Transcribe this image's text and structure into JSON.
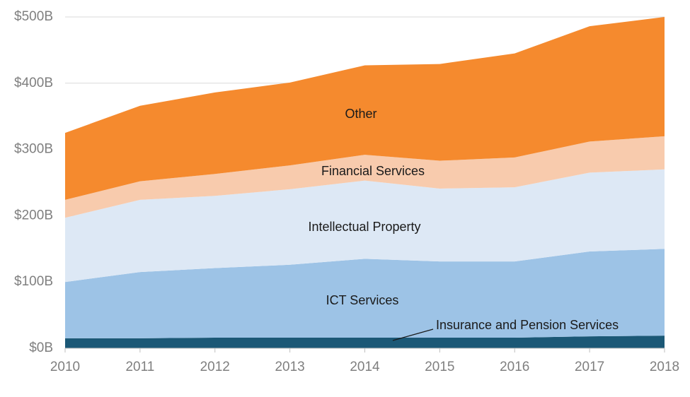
{
  "chart_data": {
    "type": "stacked_area",
    "x": [
      2010,
      2011,
      2012,
      2013,
      2014,
      2015,
      2016,
      2017,
      2018
    ],
    "xlim": [
      2010,
      2018
    ],
    "xticks": [
      2010,
      2011,
      2012,
      2013,
      2014,
      2015,
      2016,
      2017,
      2018
    ],
    "ylim": [
      0,
      500
    ],
    "yticks": [
      {
        "value": 0,
        "label": "$0B"
      },
      {
        "value": 100,
        "label": "$100B"
      },
      {
        "value": 200,
        "label": "$200B"
      },
      {
        "value": 300,
        "label": "$300B"
      },
      {
        "value": 400,
        "label": "$400B"
      },
      {
        "value": 500,
        "label": "$500B"
      }
    ],
    "grid": true,
    "series": [
      {
        "name": "Insurance and Pension Services",
        "color": "#1b5876",
        "values": [
          15,
          15,
          16,
          16,
          16,
          16,
          16,
          18,
          19
        ]
      },
      {
        "name": "ICT Services",
        "color": "#9dc3e6",
        "values": [
          85,
          100,
          105,
          110,
          119,
          115,
          115,
          128,
          131
        ]
      },
      {
        "name": "Intellectual Property",
        "color": "#dde8f5",
        "values": [
          97,
          109,
          109,
          114,
          118,
          110,
          112,
          119,
          120
        ]
      },
      {
        "name": "Financial Services",
        "color": "#f8cbad",
        "values": [
          27,
          28,
          33,
          36,
          39,
          42,
          45,
          47,
          50
        ]
      },
      {
        "name": "Other",
        "color": "#f58a2e",
        "values": [
          101,
          114,
          123,
          125,
          135,
          146,
          157,
          174,
          180
        ]
      }
    ]
  }
}
